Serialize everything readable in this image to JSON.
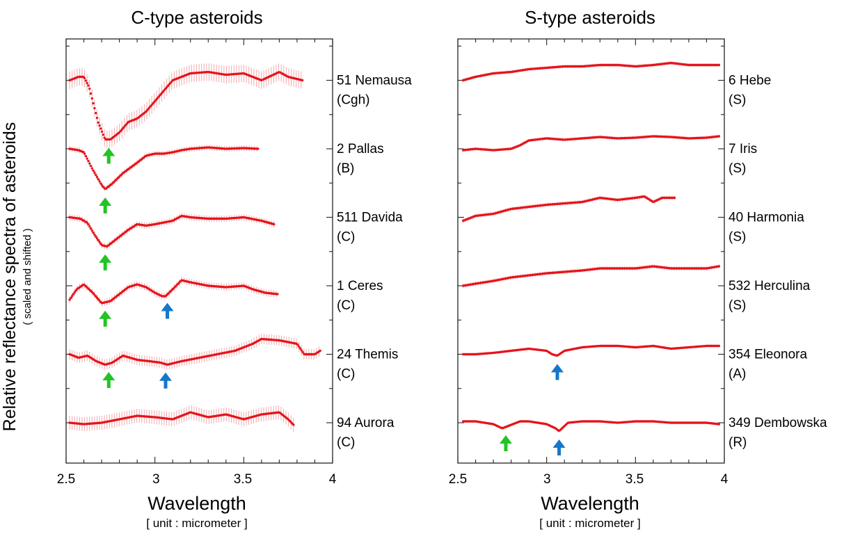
{
  "y_axis": {
    "label": "Relative reflectance spectra of asteroids",
    "sublabel": "( scaled and shifted )"
  },
  "chart_data": [
    {
      "type": "line",
      "title": "C-type asteroids",
      "xlabel": "Wavelength",
      "xlabel_sub": "[ unit : micrometer ]",
      "xlim": [
        2.5,
        4.0
      ],
      "xticks": [
        "2.5",
        "3",
        "3.5",
        "4"
      ],
      "ylabel": "Relative reflectance spectra of asteroids",
      "grid": false,
      "colors": {
        "data": "#e5141b",
        "error_bars": "#f2a9ad",
        "arrow_2_7um": "#22c425",
        "arrow_3_1um": "#1677c8"
      },
      "series": [
        {
          "label": "51 Nemausa",
          "class": "(Cgh)",
          "x_range": [
            2.52,
            3.83
          ],
          "offset": 5,
          "err": 0.25,
          "x": [
            2.52,
            2.57,
            2.6,
            2.63,
            2.68,
            2.72,
            2.75,
            2.8,
            2.85,
            2.9,
            2.95,
            3.0,
            3.05,
            3.1,
            3.2,
            3.3,
            3.4,
            3.5,
            3.6,
            3.7,
            3.75,
            3.83
          ],
          "y": [
            0.0,
            0.05,
            0.05,
            -0.1,
            -0.6,
            -0.85,
            -0.85,
            -0.75,
            -0.6,
            -0.55,
            -0.45,
            -0.3,
            -0.15,
            0.0,
            0.1,
            0.12,
            0.08,
            0.1,
            0.0,
            0.12,
            0.05,
            0.0
          ],
          "arrows": [
            {
              "x": 2.74,
              "color": "green"
            }
          ]
        },
        {
          "label": "2 Pallas",
          "class": "(B)",
          "x_range": [
            2.52,
            3.58
          ],
          "offset": 4,
          "err": 0.08,
          "x": [
            2.52,
            2.57,
            2.6,
            2.65,
            2.7,
            2.72,
            2.76,
            2.82,
            2.9,
            2.95,
            3.0,
            3.05,
            3.1,
            3.15,
            3.2,
            3.3,
            3.4,
            3.5,
            3.58
          ],
          "y": [
            0.0,
            -0.02,
            -0.05,
            -0.3,
            -0.52,
            -0.58,
            -0.5,
            -0.35,
            -0.2,
            -0.1,
            -0.07,
            -0.07,
            -0.05,
            -0.02,
            0.0,
            0.02,
            0.0,
            0.01,
            0.0
          ],
          "arrows": [
            {
              "x": 2.72,
              "color": "green"
            }
          ]
        },
        {
          "label": "511 Davida",
          "class": "(C)",
          "x_range": [
            2.52,
            3.67
          ],
          "offset": 3,
          "err": 0.09,
          "x": [
            2.52,
            2.58,
            2.62,
            2.66,
            2.7,
            2.73,
            2.78,
            2.85,
            2.9,
            2.95,
            3.0,
            3.1,
            3.15,
            3.2,
            3.3,
            3.4,
            3.5,
            3.6,
            3.67
          ],
          "y": [
            0.0,
            -0.02,
            -0.08,
            -0.25,
            -0.4,
            -0.42,
            -0.32,
            -0.18,
            -0.1,
            -0.12,
            -0.1,
            -0.05,
            0.02,
            0.0,
            -0.02,
            -0.02,
            0.0,
            -0.05,
            -0.1
          ],
          "arrows": [
            {
              "x": 2.72,
              "color": "green"
            }
          ]
        },
        {
          "label": "1 Ceres",
          "class": "(C)",
          "x_range": [
            2.52,
            3.69
          ],
          "offset": 2,
          "err": 0.1,
          "x": [
            2.52,
            2.56,
            2.6,
            2.65,
            2.7,
            2.75,
            2.8,
            2.85,
            2.9,
            2.95,
            3.0,
            3.04,
            3.06,
            3.1,
            3.15,
            3.2,
            3.3,
            3.4,
            3.5,
            3.55,
            3.62,
            3.69
          ],
          "y": [
            -0.2,
            -0.05,
            0.02,
            -0.1,
            -0.25,
            -0.22,
            -0.12,
            -0.02,
            0.02,
            -0.02,
            -0.1,
            -0.15,
            -0.15,
            -0.05,
            0.08,
            0.05,
            0.0,
            -0.02,
            0.0,
            -0.05,
            -0.1,
            -0.12
          ],
          "arrows": [
            {
              "x": 2.72,
              "color": "green"
            },
            {
              "x": 3.07,
              "color": "blue"
            }
          ]
        },
        {
          "label": "24 Themis",
          "class": "(C)",
          "x_range": [
            2.52,
            3.93
          ],
          "offset": 1,
          "err": 0.15,
          "x": [
            2.52,
            2.57,
            2.62,
            2.67,
            2.72,
            2.76,
            2.82,
            2.9,
            2.97,
            3.03,
            3.07,
            3.15,
            3.25,
            3.35,
            3.45,
            3.55,
            3.6,
            3.7,
            3.8,
            3.84,
            3.9,
            3.93
          ],
          "y": [
            0.0,
            -0.05,
            -0.02,
            -0.1,
            -0.15,
            -0.12,
            -0.02,
            -0.08,
            -0.1,
            -0.12,
            -0.15,
            -0.1,
            -0.05,
            0.0,
            0.05,
            0.15,
            0.22,
            0.2,
            0.15,
            0.0,
            0.0,
            0.05
          ],
          "arrows": [
            {
              "x": 2.74,
              "color": "green"
            },
            {
              "x": 3.06,
              "color": "blue"
            }
          ]
        },
        {
          "label": "94 Aurora",
          "class": "(C)",
          "x_range": [
            2.52,
            3.78
          ],
          "offset": 0,
          "err": 0.2,
          "x": [
            2.52,
            2.6,
            2.7,
            2.8,
            2.9,
            3.0,
            3.1,
            3.2,
            3.3,
            3.4,
            3.5,
            3.6,
            3.7,
            3.75,
            3.78
          ],
          "y": [
            0.0,
            -0.02,
            0.0,
            0.05,
            0.1,
            0.08,
            0.05,
            0.15,
            0.08,
            0.12,
            0.05,
            0.12,
            0.15,
            0.05,
            -0.03
          ],
          "arrows": []
        }
      ]
    },
    {
      "type": "line",
      "title": "S-type asteroids",
      "xlabel": "Wavelength",
      "xlabel_sub": "[ unit : micrometer ]",
      "xlim": [
        2.5,
        4.0
      ],
      "xticks": [
        "2.5",
        "3",
        "3.5",
        "4"
      ],
      "grid": false,
      "colors": {
        "data": "#e5141b",
        "error_bars": "#f2a9ad",
        "arrow_2_7um": "#22c425",
        "arrow_3_1um": "#1677c8"
      },
      "series": [
        {
          "label": "6 Hebe",
          "class": "(S)",
          "x_range": [
            2.53,
            3.97
          ],
          "offset": 5,
          "err": 0.05,
          "x": [
            2.53,
            2.6,
            2.7,
            2.8,
            2.9,
            3.0,
            3.1,
            3.2,
            3.3,
            3.4,
            3.5,
            3.6,
            3.7,
            3.8,
            3.9,
            3.97
          ],
          "y": [
            0.0,
            0.05,
            0.1,
            0.12,
            0.16,
            0.18,
            0.2,
            0.2,
            0.22,
            0.22,
            0.2,
            0.22,
            0.25,
            0.22,
            0.22,
            0.22
          ],
          "arrows": []
        },
        {
          "label": "7 Iris",
          "class": "(S)",
          "x_range": [
            2.53,
            3.97
          ],
          "offset": 4,
          "err": 0.05,
          "x": [
            2.53,
            2.6,
            2.7,
            2.8,
            2.85,
            2.9,
            3.0,
            3.1,
            3.2,
            3.3,
            3.4,
            3.5,
            3.6,
            3.7,
            3.8,
            3.9,
            3.97
          ],
          "y": [
            -0.02,
            0.0,
            -0.02,
            0.0,
            0.05,
            0.12,
            0.15,
            0.13,
            0.15,
            0.17,
            0.15,
            0.16,
            0.18,
            0.17,
            0.15,
            0.16,
            0.18
          ],
          "arrows": []
        },
        {
          "label": "40 Harmonia",
          "class": "(S)",
          "x_range": [
            2.53,
            3.72
          ],
          "offset": 3,
          "err": 0.06,
          "x": [
            2.53,
            2.6,
            2.7,
            2.8,
            2.9,
            3.0,
            3.1,
            3.2,
            3.3,
            3.4,
            3.5,
            3.55,
            3.6,
            3.65,
            3.72
          ],
          "y": [
            -0.05,
            0.02,
            0.05,
            0.12,
            0.15,
            0.18,
            0.2,
            0.22,
            0.28,
            0.25,
            0.28,
            0.3,
            0.22,
            0.28,
            0.28
          ],
          "arrows": []
        },
        {
          "label": "532 Herculina",
          "class": "(S)",
          "x_range": [
            2.53,
            3.97
          ],
          "offset": 2,
          "err": 0.06,
          "x": [
            2.53,
            2.6,
            2.7,
            2.8,
            2.9,
            3.0,
            3.1,
            3.2,
            3.3,
            3.4,
            3.5,
            3.6,
            3.7,
            3.8,
            3.9,
            3.97
          ],
          "y": [
            0.0,
            0.03,
            0.07,
            0.12,
            0.15,
            0.18,
            0.2,
            0.22,
            0.25,
            0.25,
            0.25,
            0.28,
            0.25,
            0.25,
            0.25,
            0.28
          ],
          "arrows": []
        },
        {
          "label": "354 Eleonora",
          "class": "(A)",
          "x_range": [
            2.53,
            3.97
          ],
          "offset": 1,
          "err": 0.04,
          "x": [
            2.53,
            2.6,
            2.7,
            2.8,
            2.9,
            3.0,
            3.03,
            3.06,
            3.1,
            3.2,
            3.3,
            3.4,
            3.5,
            3.6,
            3.7,
            3.8,
            3.9,
            3.97
          ],
          "y": [
            0.0,
            0.0,
            0.02,
            0.05,
            0.08,
            0.05,
            0.0,
            -0.02,
            0.05,
            0.1,
            0.12,
            0.12,
            0.1,
            0.12,
            0.08,
            0.1,
            0.12,
            0.12
          ],
          "arrows": [
            {
              "x": 3.06,
              "color": "blue"
            }
          ]
        },
        {
          "label": "349 Dembowska",
          "class": "(R)",
          "x_range": [
            2.53,
            3.97
          ],
          "offset": 0,
          "err": 0.04,
          "x": [
            2.53,
            2.6,
            2.65,
            2.7,
            2.75,
            2.78,
            2.85,
            2.9,
            3.0,
            3.05,
            3.07,
            3.12,
            3.2,
            3.3,
            3.4,
            3.5,
            3.6,
            3.7,
            3.8,
            3.9,
            3.97
          ],
          "y": [
            0.02,
            0.02,
            0.0,
            -0.02,
            -0.08,
            -0.05,
            0.02,
            0.02,
            -0.02,
            -0.08,
            -0.12,
            0.0,
            0.02,
            0.02,
            0.0,
            0.02,
            0.02,
            0.0,
            0.0,
            0.0,
            -0.02
          ],
          "arrows": [
            {
              "x": 2.77,
              "color": "green"
            },
            {
              "x": 3.07,
              "color": "blue"
            }
          ]
        }
      ]
    }
  ]
}
